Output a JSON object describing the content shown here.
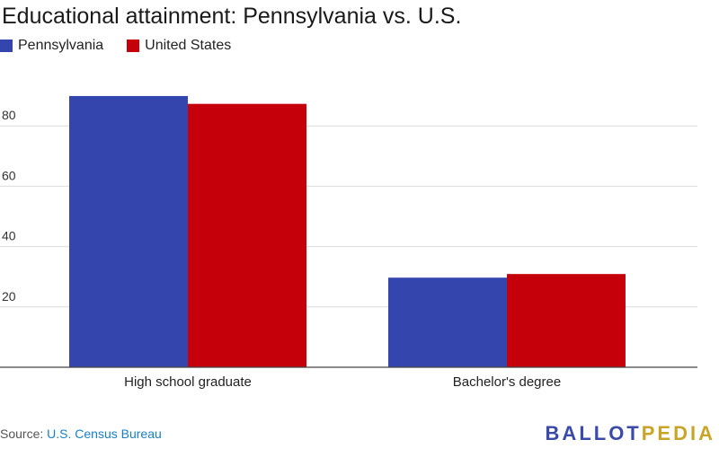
{
  "title": "Educational attainment: Pennsylvania vs. U.S.",
  "source": {
    "prefix": "Source:",
    "link": "U.S. Census Bureau"
  },
  "logo": {
    "part1": "BALLOT",
    "part2": "PEDIA",
    "color1": "#3a4aa8",
    "color2": "#c8a428"
  },
  "chart_data": {
    "type": "bar",
    "title": "Educational attainment: Pennsylvania vs. U.S.",
    "categories": [
      "High school graduate",
      "Bachelor's degree"
    ],
    "series": [
      {
        "name": "Pennsylvania",
        "color": "#3446ad",
        "values": [
          89.9,
          29.7
        ]
      },
      {
        "name": "United States",
        "color": "#c5000b",
        "values": [
          87.3,
          30.9
        ]
      }
    ],
    "yticks": [
      20,
      40,
      60,
      80
    ],
    "ylim": [
      0,
      100
    ],
    "grid": true,
    "legend": "top-left"
  }
}
